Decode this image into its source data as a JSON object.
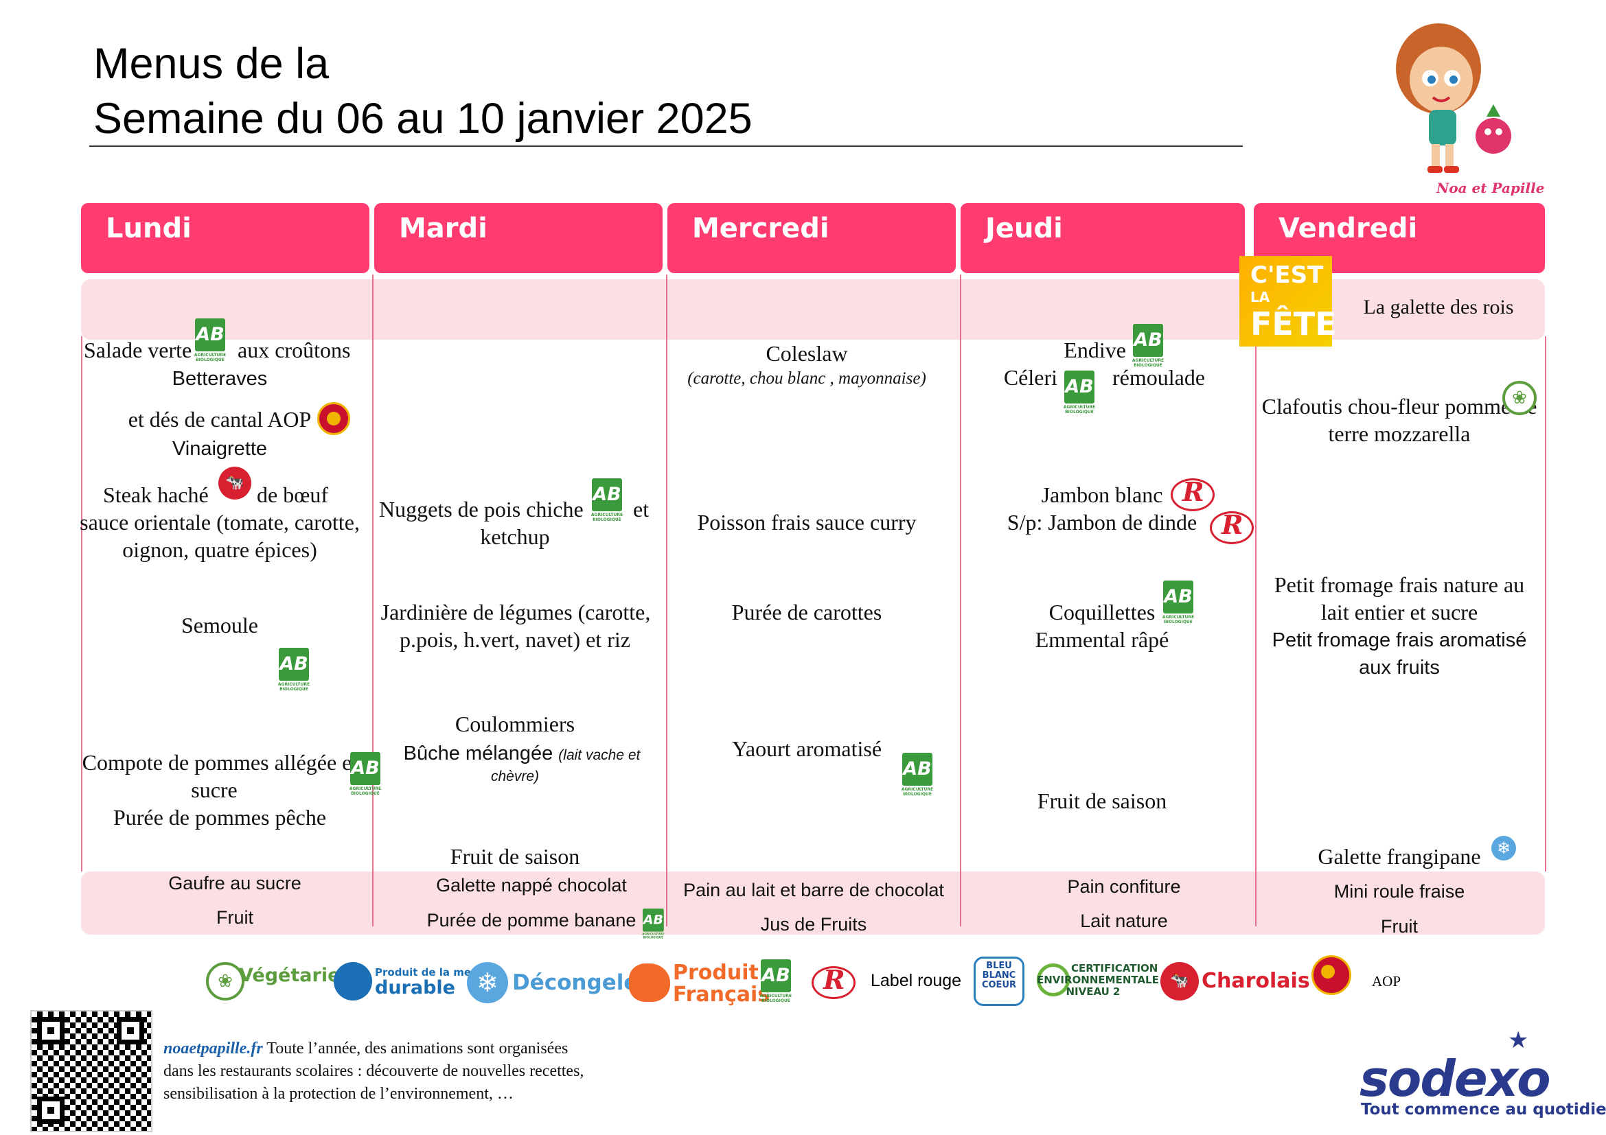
{
  "header": {
    "title_line1": "Menus de la",
    "title_line2": "Semaine du 06 au 10 janvier 2025"
  },
  "mascot": {
    "label": "Noa et Papille"
  },
  "days": [
    "Lundi",
    "Mardi",
    "Mercredi",
    "Jeudi",
    "Vendredi"
  ],
  "fete": {
    "badge_line1": "C'EST",
    "badge_line2": "LA",
    "badge_line3": "FÊTE",
    "text": "La galette des rois"
  },
  "lundi": {
    "entree1a": "Salade verte",
    "entree1b": "aux croûtons",
    "entree2": "Betteraves",
    "entree3": "et dés de cantal AOP",
    "entree4": "Vinaigrette",
    "plat1a": "Steak haché",
    "plat1b": "de bœuf",
    "plat2": "sauce orientale (tomate, carotte,",
    "plat3": "oignon, quatre épices)",
    "garniture": "Semoule",
    "dessert1a": "Compote de pommes allégée en",
    "dessert1b": "sucre",
    "dessert2": "Purée de pommes pêche",
    "snack1": "Gaufre au sucre",
    "snack2": "Fruit"
  },
  "mardi": {
    "plat1a": "Nuggets de pois chiche",
    "plat1b": "et",
    "plat2": "ketchup",
    "garniture1": "Jardinière de légumes (carotte,",
    "garniture2": "p.pois, h.vert, navet) et riz",
    "fromage1": "Coulommiers",
    "fromage2": "Bûche mélangée",
    "fromage2_note": "(lait vache et",
    "fromage3_note": "chèvre)",
    "dessert": "Fruit de saison",
    "snack1": "Galette nappé chocolat",
    "snack2": "Purée de pomme banane"
  },
  "mercredi": {
    "entree1": "Coleslaw",
    "entree2": "(carotte, chou blanc , mayonnaise)",
    "plat": "Poisson frais sauce curry",
    "garniture": "Purée de carottes",
    "dessert": "Yaourt aromatisé",
    "snack1": "Pain au lait et barre de chocolat",
    "snack2": "Jus de Fruits"
  },
  "jeudi": {
    "entree1": "Endive",
    "entree2a": "Céleri",
    "entree2b": "rémoulade",
    "plat1": "Jambon blanc",
    "plat2": "S/p: Jambon de dinde",
    "garniture1": "Coquillettes",
    "garniture2": "Emmental râpé",
    "dessert": "Fruit de saison",
    "snack1": "Pain confiture",
    "snack2": "Lait nature"
  },
  "vendredi": {
    "plat1": "Clafoutis chou-fleur pomme de",
    "plat2": "terre mozzarella",
    "fromage1": "Petit fromage frais nature au",
    "fromage2": "lait entier et sucre",
    "fromage3": "Petit fromage frais aromatisé",
    "fromage4": "aux fruits",
    "dessert": "Galette frangipane",
    "snack1": "Mini roule fraise",
    "snack2": "Fruit"
  },
  "ab_logo": {
    "text": "AB",
    "caption": "AGRICULTURE BIOLOGIQUE"
  },
  "legend": {
    "vegetarien": "Végétarien",
    "peche_small": "Produit de la mer",
    "peche_big": "durable",
    "decongele": "Décongelé",
    "produit": "Produit",
    "francais": "Français",
    "label_rouge": "Label rouge",
    "bbc1": "BLEU",
    "bbc2": "BLANC",
    "bbc3": "COEUR",
    "certif1": "CERTIFICATION",
    "certif2": "ENVIRONNEMENTALE",
    "certif3": "NIVEAU 2",
    "charolais": "Charolais",
    "aop": "AOP"
  },
  "footer": {
    "site": "noaetpapille.fr",
    "text1": " Toute l’année, des animations sont organisées",
    "text2": "dans les restaurants scolaires : découverte de nouvelles recettes,",
    "text3": "sensibilisation à la protection de l’environnement, …"
  },
  "brand": {
    "name": "sodexo",
    "tagline": "Tout commence au quotidien"
  },
  "colors": {
    "header_pink": "#ff3b6f",
    "band_pink": "#fcdfe3",
    "bio_green": "#3b9a3b",
    "label_red": "#d92030",
    "sodexo_blue": "#2a3a8c"
  }
}
